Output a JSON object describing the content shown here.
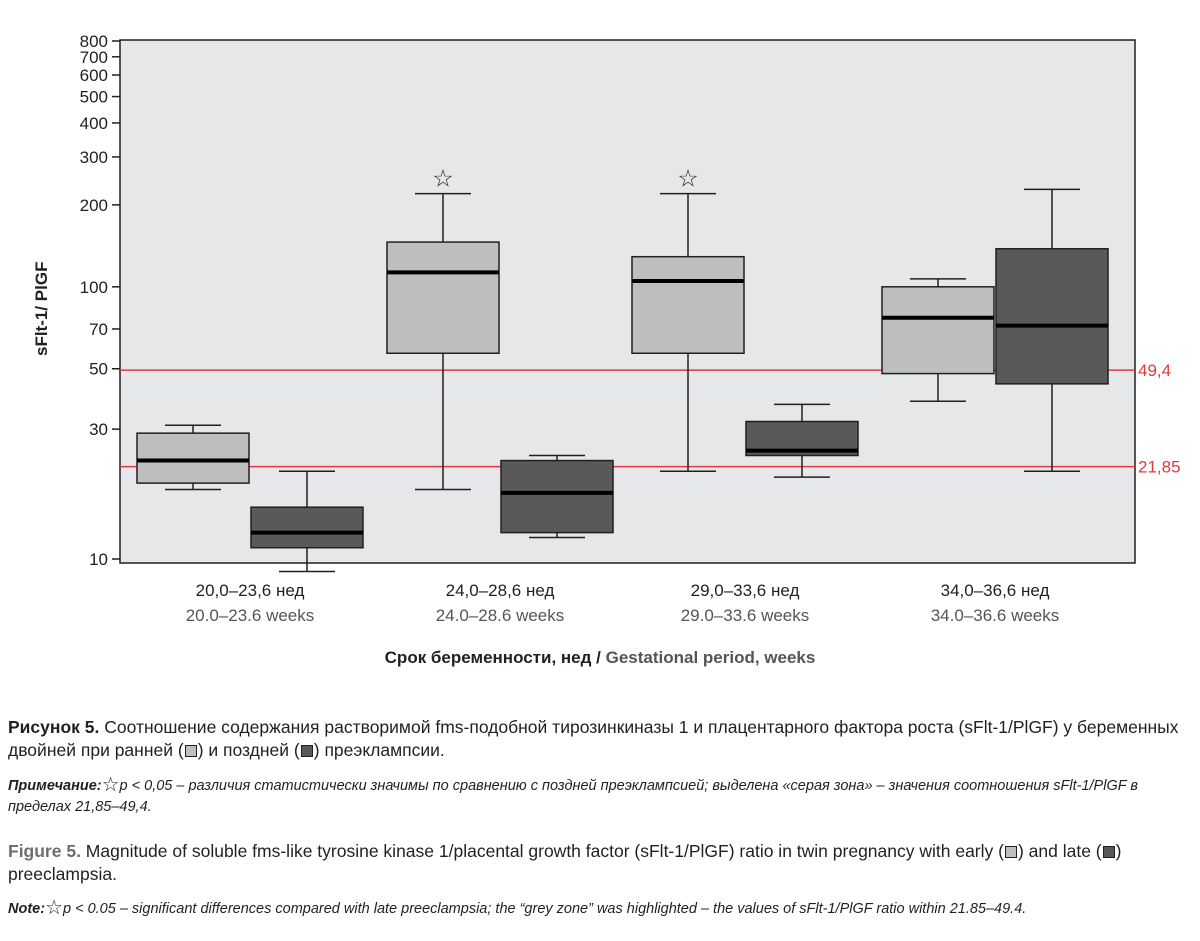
{
  "chart_data": {
    "type": "box",
    "xlabel_ru": "Срок беременности, нед",
    "xlabel_sep": " / ",
    "xlabel_en": "Gestational period, weeks",
    "ylabel": "sFlt-1/ PlGF",
    "ylim": [
      10,
      800
    ],
    "yscale": "log",
    "yticks": [
      10,
      30,
      50,
      70,
      100,
      200,
      300,
      400,
      500,
      600,
      700,
      800
    ],
    "categories": [
      {
        "ru": "20,0–23,6 нед",
        "en": "20.0–23.6 weeks"
      },
      {
        "ru": "24,0–28,6 нед",
        "en": "24.0–28.6 weeks"
      },
      {
        "ru": "29,0–33,6 нед",
        "en": "29.0–33.6 weeks"
      },
      {
        "ru": "34,0–36,6 нед",
        "en": "34.0–36.6 weeks"
      }
    ],
    "series": [
      {
        "group": "early",
        "color": "#bcbec0",
        "boxes": [
          {
            "whisker_low": 18,
            "q1": 19,
            "median": 23,
            "q3": 29,
            "whisker_high": 31
          },
          {
            "whisker_low": 18,
            "q1": 57,
            "median": 113,
            "q3": 146,
            "whisker_high": 220
          },
          {
            "whisker_low": 21,
            "q1": 57,
            "median": 105,
            "q3": 129,
            "whisker_high": 220
          },
          {
            "whisker_low": 38,
            "q1": 48,
            "median": 77,
            "q3": 100,
            "whisker_high": 107
          }
        ]
      },
      {
        "group": "late",
        "color": "#58595b",
        "boxes": [
          {
            "whisker_low": 9,
            "q1": 11,
            "median": 12.5,
            "q3": 15.5,
            "whisker_high": 21
          },
          {
            "whisker_low": 12,
            "q1": 12.5,
            "median": 17.5,
            "q3": 23,
            "whisker_high": 24
          },
          {
            "whisker_low": 20,
            "q1": 24,
            "median": 25,
            "q3": 32,
            "whisker_high": 37
          },
          {
            "whisker_low": 21,
            "q1": 44,
            "median": 72,
            "q3": 138,
            "whisker_high": 228
          }
        ]
      }
    ],
    "significance_markers": [
      {
        "category_index": 1,
        "y": 250
      },
      {
        "category_index": 2,
        "y": 250
      }
    ],
    "reference_lines": [
      {
        "value": 49.4,
        "label": "49,4",
        "color": "#e03a3e"
      },
      {
        "value": 21.85,
        "label": "21,85",
        "color": "#e03a3e"
      }
    ],
    "grid": false
  },
  "caption": {
    "ru_title": "Рисунок 5.",
    "ru_text_1": " Соотношение содержания растворимой fms-подобной тирозинкиназы 1 и плацентарного фактора роста (sFlt-1/PlGF) у беременных двойней при ранней (",
    "ru_text_2": ") и поздней (",
    "ru_text_3": ") преэклампсии.",
    "ru_note_label": "Примечание:",
    "ru_note_text": "p < 0,05 – различия статистически значимы по сравнению с поздней преэклампсией; выделена «серая зона» – значения соотношения sFlt-1/PlGF в пределах 21,85–49,4.",
    "en_title": "Figure 5.",
    "en_text_1": " Magnitude of soluble fms-like tyrosine kinase 1/placental growth factor (sFlt-1/PlGF) ratio in twin pregnancy with early (",
    "en_text_2": ") and late (",
    "en_text_3": ") preeclampsia.",
    "en_note_label": "Note:",
    "en_note_text": "p < 0.05 – significant differences compared with late preeclampsia; the “grey zone” was highlighted – the values of sFlt-1/PlGF ratio within 21.85–49.4.",
    "star_symbol": "☆"
  }
}
